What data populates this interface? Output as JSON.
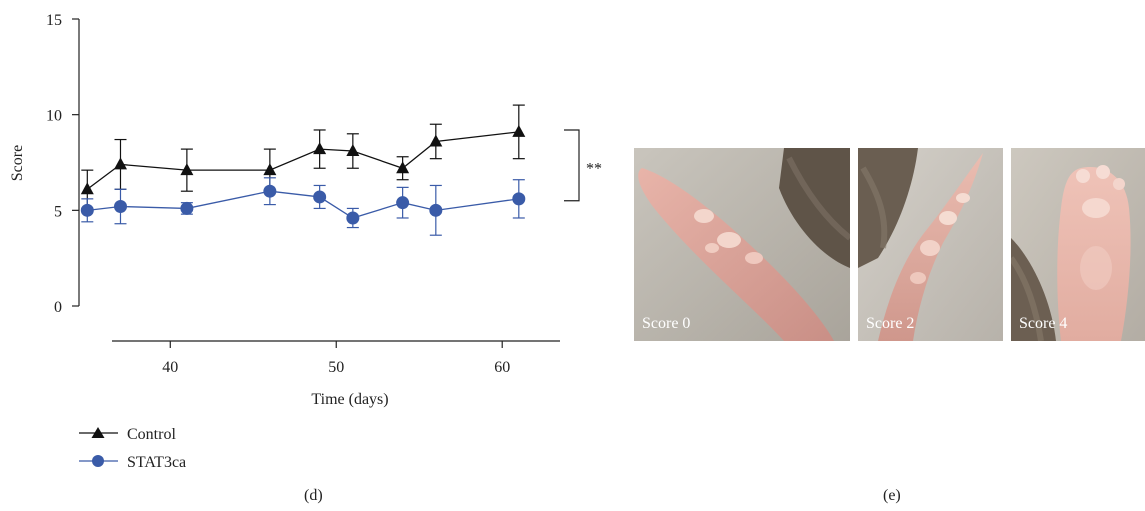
{
  "chart_data": {
    "type": "line",
    "xlabel": "Time (days)",
    "ylabel": "Score",
    "xlim": [
      34.5,
      63
    ],
    "ylim": [
      0,
      15
    ],
    "xticks": [
      40,
      50,
      60
    ],
    "yticks": [
      0,
      5,
      10,
      15
    ],
    "grid": false,
    "legend_position": "bottom-left",
    "series": [
      {
        "name": "Control",
        "marker": "triangle",
        "color": "#111111",
        "x": [
          35,
          37,
          41,
          46,
          49,
          51,
          54,
          56,
          61
        ],
        "y": [
          6.1,
          7.4,
          7.1,
          7.1,
          8.2,
          8.1,
          7.2,
          8.6,
          9.1
        ],
        "err": [
          1.0,
          1.3,
          1.1,
          1.1,
          1.0,
          0.9,
          0.6,
          0.9,
          1.4
        ]
      },
      {
        "name": "STAT3ca",
        "marker": "circle",
        "color": "#3a5ba8",
        "x": [
          35,
          37,
          41,
          46,
          49,
          51,
          54,
          56,
          61
        ],
        "y": [
          5.0,
          5.2,
          5.1,
          6.0,
          5.7,
          4.6,
          5.4,
          5.0,
          5.6
        ],
        "err": [
          0.6,
          0.9,
          0.3,
          0.7,
          0.6,
          0.5,
          0.8,
          1.3,
          1.0
        ]
      }
    ],
    "annotation": "**",
    "significance_bracket": {
      "y_top": 9.2,
      "y_bottom": 5.5
    }
  },
  "panels": {
    "d": "(d)",
    "e": "(e)"
  },
  "photos": [
    {
      "label": "Score 0"
    },
    {
      "label": "Score 2"
    },
    {
      "label": "Score 4"
    }
  ]
}
